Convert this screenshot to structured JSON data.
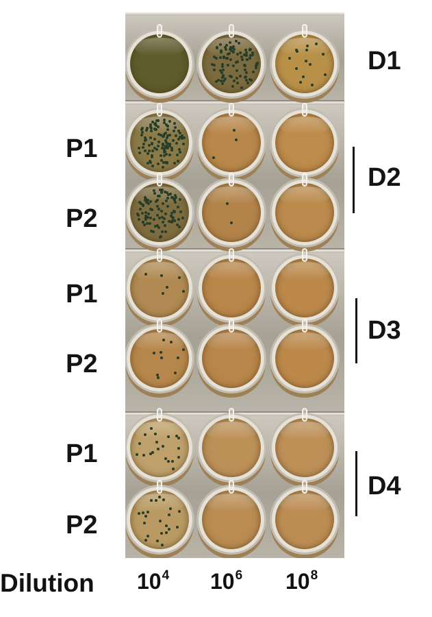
{
  "figure": {
    "photo_description": "Plates of wells with bacterial colonies at three dilutions",
    "donor_labels": [
      "D1",
      "D2",
      "D3",
      "D4"
    ],
    "replicate_labels": [
      "P1",
      "P2",
      "P1",
      "P2",
      "P1",
      "P2"
    ],
    "x_axis": {
      "title": "Dilution",
      "ticks": [
        {
          "base": "10",
          "exp": "4"
        },
        {
          "base": "10",
          "exp": "6"
        },
        {
          "base": "10",
          "exp": "8"
        }
      ]
    },
    "colors": {
      "text": "#141414",
      "medium_green": "#6f6a32",
      "medium_amber": "#b58a4a",
      "colony": "#263d2a"
    }
  }
}
